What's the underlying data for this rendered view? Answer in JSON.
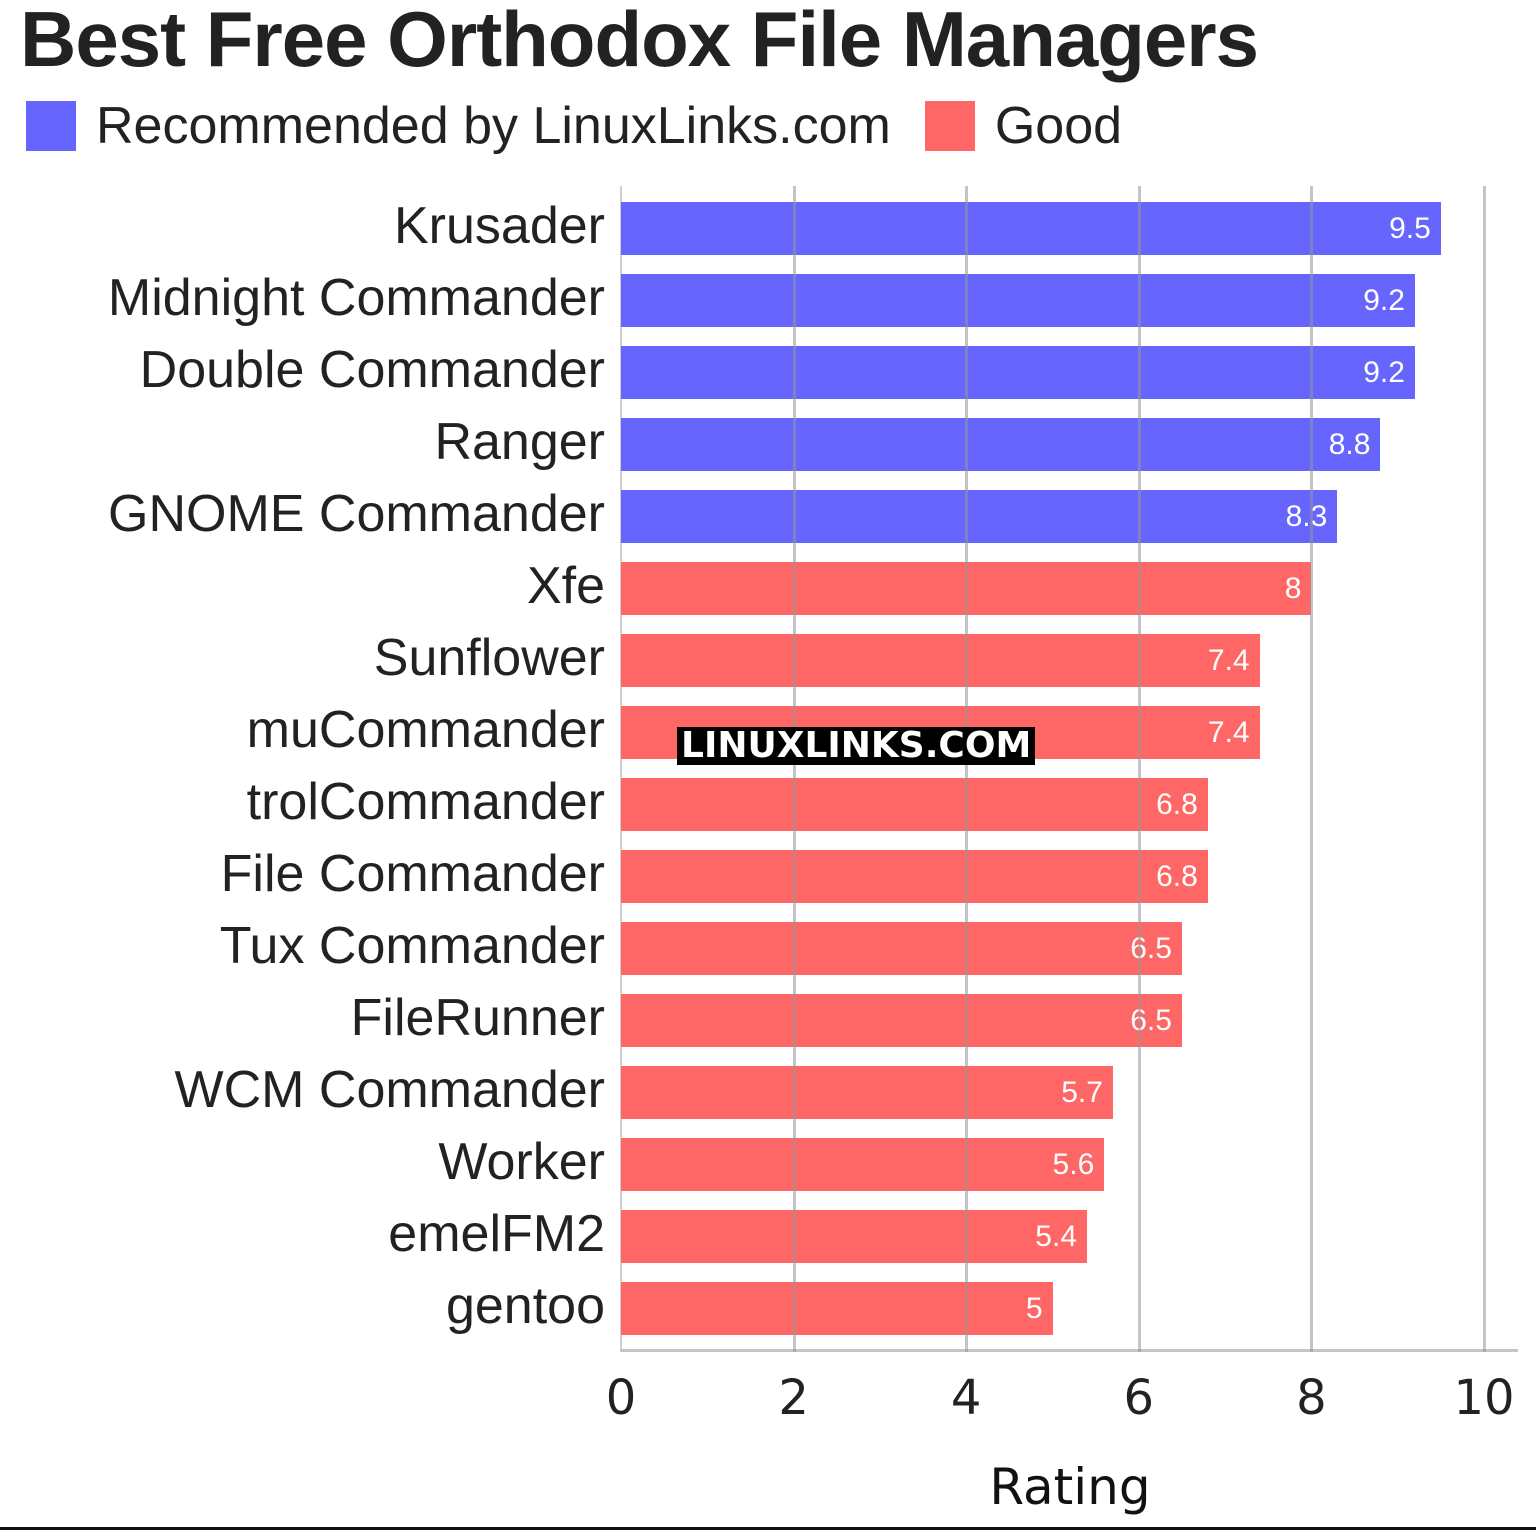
{
  "chart_data": {
    "type": "bar",
    "orientation": "horizontal",
    "title": "Best Free Orthodox File Managers",
    "xlabel": "Rating",
    "ylabel": "",
    "xlim": [
      0,
      10
    ],
    "x_ticks": [
      "0",
      "2",
      "4",
      "6",
      "8",
      "10"
    ],
    "grid": true,
    "legend_position": "top-left",
    "legend": [
      {
        "label": "Recommended by LinuxLinks.com",
        "color": "#6666ff"
      },
      {
        "label": "Good",
        "color": "#ff6666"
      }
    ],
    "categories": [
      "Krusader",
      "Midnight Commander",
      "Double Commander",
      "Ranger",
      "GNOME Commander",
      "Xfe",
      "Sunflower",
      "muCommander",
      "trolCommander",
      "File Commander",
      "Tux Commander",
      "FileRunner",
      "WCM Commander",
      "Worker",
      "emelFM2",
      "gentoo"
    ],
    "values": [
      9.5,
      9.2,
      9.2,
      8.8,
      8.3,
      8,
      7.4,
      7.4,
      6.8,
      6.8,
      6.5,
      6.5,
      5.7,
      5.6,
      5.4,
      5
    ],
    "series_group": [
      "Recommended by LinuxLinks.com",
      "Recommended by LinuxLinks.com",
      "Recommended by LinuxLinks.com",
      "Recommended by LinuxLinks.com",
      "Recommended by LinuxLinks.com",
      "Good",
      "Good",
      "Good",
      "Good",
      "Good",
      "Good",
      "Good",
      "Good",
      "Good",
      "Good",
      "Good"
    ],
    "annotations": [
      "LINUXLINKS.COM"
    ]
  },
  "title": "Best Free Orthodox File Managers",
  "legend": {
    "recommended_label": "Recommended by LinuxLinks.com",
    "recommended_color": "#6666ff",
    "good_label": "Good",
    "good_color": "#ff6666"
  },
  "bars": [
    {
      "label": "Krusader",
      "value": 9.5,
      "display": "9.5",
      "color": "#6666ff"
    },
    {
      "label": "Midnight Commander",
      "value": 9.2,
      "display": "9.2",
      "color": "#6666ff"
    },
    {
      "label": "Double Commander",
      "value": 9.2,
      "display": "9.2",
      "color": "#6666ff"
    },
    {
      "label": "Ranger",
      "value": 8.8,
      "display": "8.8",
      "color": "#6666ff"
    },
    {
      "label": "GNOME Commander",
      "value": 8.3,
      "display": "8.3",
      "color": "#6666ff"
    },
    {
      "label": "Xfe",
      "value": 8,
      "display": "8",
      "color": "#ff6666"
    },
    {
      "label": "Sunflower",
      "value": 7.4,
      "display": "7.4",
      "color": "#ff6666"
    },
    {
      "label": "muCommander",
      "value": 7.4,
      "display": "7.4",
      "color": "#ff6666"
    },
    {
      "label": "trolCommander",
      "value": 6.8,
      "display": "6.8",
      "color": "#ff6666"
    },
    {
      "label": "File Commander",
      "value": 6.8,
      "display": "6.8",
      "color": "#ff6666"
    },
    {
      "label": "Tux Commander",
      "value": 6.5,
      "display": "6.5",
      "color": "#ff6666"
    },
    {
      "label": "FileRunner",
      "value": 6.5,
      "display": "6.5",
      "color": "#ff6666"
    },
    {
      "label": "WCM Commander",
      "value": 5.7,
      "display": "5.7",
      "color": "#ff6666"
    },
    {
      "label": "Worker",
      "value": 5.6,
      "display": "5.6",
      "color": "#ff6666"
    },
    {
      "label": "emelFM2",
      "value": 5.4,
      "display": "5.4",
      "color": "#ff6666"
    },
    {
      "label": "gentoo",
      "value": 5,
      "display": "5",
      "color": "#ff6666"
    }
  ],
  "x_axis": {
    "title": "Rating",
    "ticks": [
      "0",
      "2",
      "4",
      "6",
      "8",
      "10"
    ]
  },
  "watermark": "LINUXLINKS.COM"
}
